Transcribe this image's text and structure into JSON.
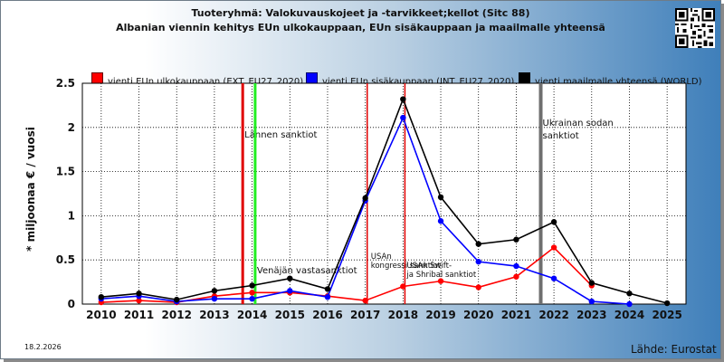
{
  "header": {
    "title_line1": "Tuoteryhmä: Valokuvauskojeet ja -tarvikkeet;kellot (Sitc 88)",
    "title_line2": "Albanian viennin kehitys EUn ulkokauppaan, EUn sisäkauppaan ja maailmalle yhteensä"
  },
  "footer": {
    "date": "18.2.2026",
    "source": "Lähde: Eurostat"
  },
  "colors": {
    "ext": "#ff0000",
    "int": "#0000ff",
    "world": "#000000",
    "sanction_red": "#e00000",
    "sanction_green": "#22ee22",
    "war_gray": "#6f6f6f"
  },
  "chart_data": {
    "type": "line",
    "ylabel": "* miljoonaa € / vuosi",
    "xlabel": "",
    "ylim": [
      0,
      2.5
    ],
    "yticks": [
      "0",
      "0.5",
      "1",
      "1.5",
      "2",
      "2.5"
    ],
    "x": [
      "2010",
      "2011",
      "2012",
      "2013",
      "2014",
      "2015",
      "2016",
      "2017",
      "2018",
      "2019",
      "2020",
      "2021",
      "2022",
      "2023",
      "2024",
      "2025"
    ],
    "grid": true,
    "legend_position": "top",
    "series": [
      {
        "key": "ext",
        "name": "vienti EUn ulkokauppaan (EXT_EU27_2020)",
        "values": [
          0.02,
          0.04,
          0.02,
          0.09,
          0.13,
          0.13,
          0.09,
          0.04,
          0.2,
          0.26,
          0.19,
          0.31,
          0.64,
          0.21,
          null,
          null
        ]
      },
      {
        "key": "int",
        "name": "vienti EUn sisäkauppaan (INT_EU27_2020)",
        "values": [
          0.06,
          0.09,
          0.03,
          0.06,
          0.06,
          0.15,
          0.08,
          1.17,
          2.11,
          0.94,
          0.48,
          0.43,
          0.29,
          0.03,
          0.0,
          null
        ]
      },
      {
        "key": "world",
        "name": "vienti maailmalle yhteensä (WORLD)",
        "values": [
          0.08,
          0.12,
          0.05,
          0.15,
          0.21,
          0.29,
          0.17,
          1.2,
          2.32,
          1.21,
          0.68,
          0.73,
          0.93,
          0.24,
          0.12,
          0.01
        ]
      }
    ],
    "annotations": [
      {
        "key": "sanctions-west",
        "year": 2013.75,
        "color": "sanction_red",
        "label_lines": [
          "Lännen sanktiot"
        ],
        "style": "normal"
      },
      {
        "key": "sanctions-green",
        "year": 2014.08,
        "color": "sanction_green",
        "label_lines": [],
        "style": "normal"
      },
      {
        "key": "russia-counter",
        "year": 2014.08,
        "color": "",
        "label_lines": [
          "Venäjän vastasanktiot"
        ],
        "style": "normal"
      },
      {
        "key": "usa-congress",
        "year": 2017.05,
        "color": "sanction_red",
        "label_lines": [
          "USAn",
          "kongressi sanktiot"
        ],
        "style": "small"
      },
      {
        "key": "usa-swift",
        "year": 2018.05,
        "color": "sanction_red",
        "label_lines": [
          "USAn Swift-",
          "ja Shribal sanktiot"
        ],
        "style": "small"
      },
      {
        "key": "ukraine-war",
        "year": 2021.65,
        "color": "war_gray",
        "label_lines": [
          "Ukrainan sodan",
          "sanktiot"
        ],
        "style": "normal"
      }
    ]
  }
}
